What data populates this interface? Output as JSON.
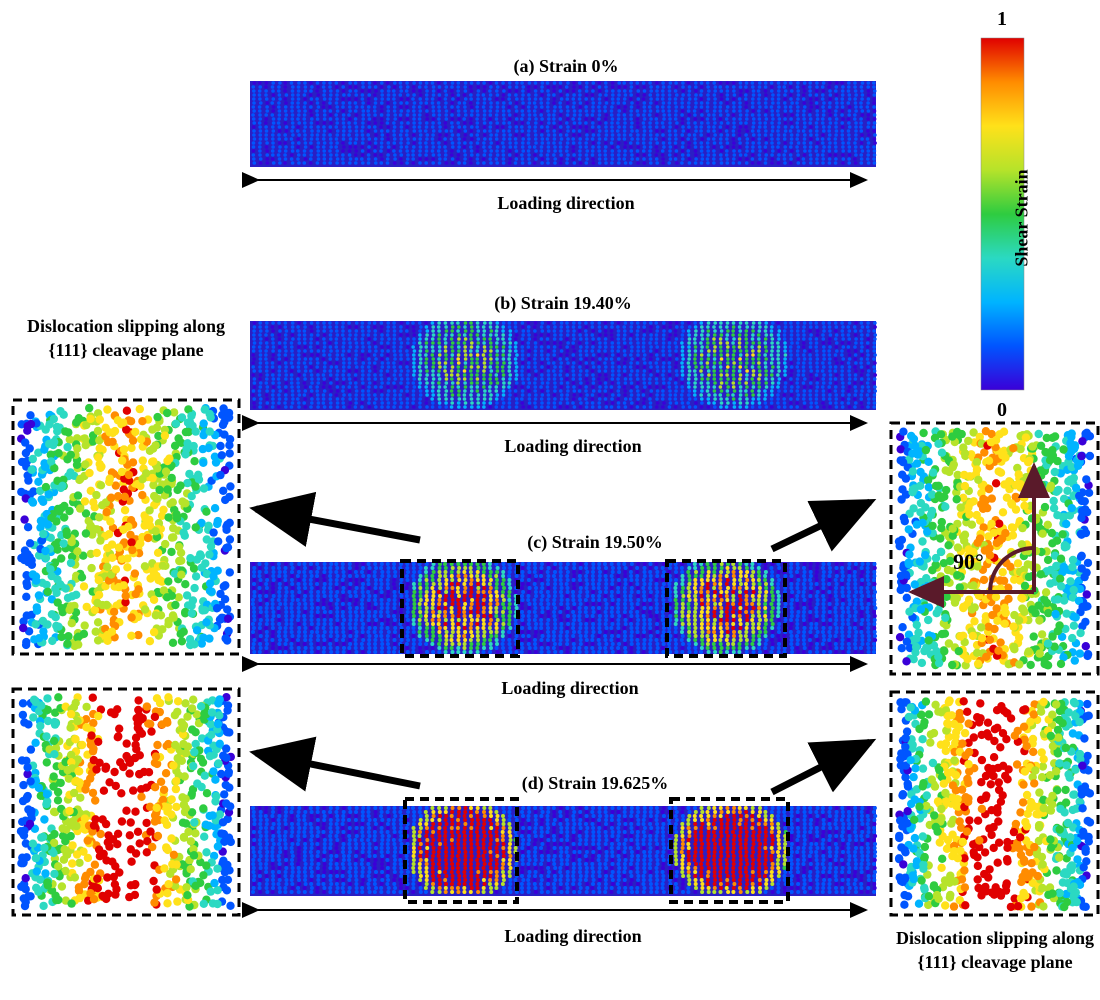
{
  "panels": {
    "a": {
      "label": "(a)  Strain 0%"
    },
    "b": {
      "label": "(b) Strain 19.40%"
    },
    "c": {
      "label": "(c)  Strain 19.50%"
    },
    "d": {
      "label": "(d) Strain 19.625%"
    }
  },
  "loading_direction": "Loading direction",
  "colorbar": {
    "title": "Shear Strain",
    "max_label": "1",
    "min_label": "0",
    "colors": [
      "#3a00d8",
      "#0055ff",
      "#00b4ff",
      "#2bd9c2",
      "#2ecc40",
      "#b6e32a",
      "#ffe11a",
      "#ff8c00",
      "#e00000"
    ]
  },
  "annotations": {
    "left_note": "Dislocation slipping along {111} cleavage plane",
    "right_note": "Dislocation slipping along {111} cleavage plane",
    "angle": "90°"
  }
}
